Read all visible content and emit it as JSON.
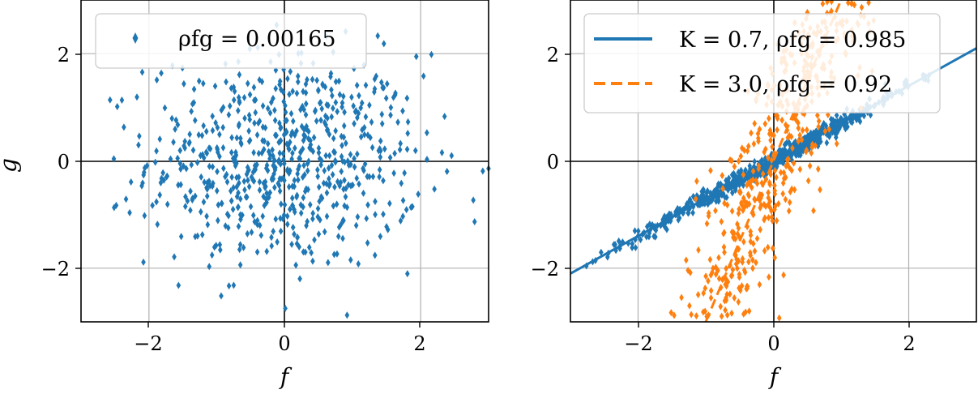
{
  "chart_data": [
    {
      "type": "scatter",
      "title": "",
      "xlabel": "f",
      "ylabel": "g",
      "xlim": [
        -3,
        3
      ],
      "ylim": [
        -3,
        3
      ],
      "xticks": [
        "−2",
        "0",
        "2"
      ],
      "yticks": [
        "2",
        "0",
        "−2"
      ],
      "grid": true,
      "legend_position": "top-left",
      "series": [
        {
          "name": "ρfg = 0.00165",
          "marker": "diamond",
          "color": "#1f77b4",
          "correlation": 0.00165,
          "slope": 0,
          "noise": 1.0,
          "n_points": 700
        }
      ]
    },
    {
      "type": "scatter",
      "title": "",
      "xlabel": "f",
      "ylabel": "",
      "xlim": [
        -3,
        3
      ],
      "ylim": [
        -3,
        3
      ],
      "xticks": [
        "−2",
        "0",
        "2"
      ],
      "yticks": [
        "2",
        "0",
        "−2"
      ],
      "grid": true,
      "legend_position": "top-left",
      "series": [
        {
          "name": "K = 0.7, ρfg = 0.985",
          "marker": "diamond",
          "line_style": "solid",
          "color": "#1f77b4",
          "K": 0.7,
          "correlation": 0.985,
          "slope": 0.7,
          "noise": 0.08,
          "n_points": 700
        },
        {
          "name": "K = 3.0, ρfg = 0.92",
          "marker": "diamond",
          "line_style": "dashed",
          "color": "#ff7f0e",
          "K": 3.0,
          "correlation": 0.92,
          "slope": 3.0,
          "noise": 1.1,
          "n_points": 700
        }
      ]
    }
  ],
  "colors": {
    "blue": "#1f77b4",
    "orange": "#ff7f0e",
    "grid": "#b0b0b0",
    "axis": "#000000"
  }
}
